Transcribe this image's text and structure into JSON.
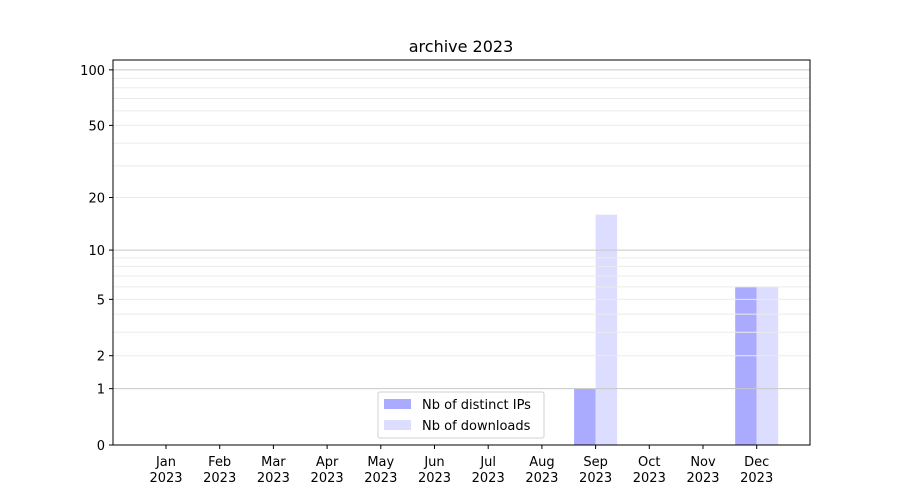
{
  "chart_data": {
    "type": "bar",
    "title": "archive 2023",
    "xlabel": "",
    "ylabel": "",
    "yscale": "symlog (log10(1+y))",
    "ylim": [
      0,
      113
    ],
    "yticks": [
      0,
      1,
      2,
      5,
      10,
      20,
      50,
      100
    ],
    "grid": true,
    "legend_placement": "bottom-center",
    "categories": [
      "Jan\n2023",
      "Feb\n2023",
      "Mar\n2023",
      "Apr\n2023",
      "May\n2023",
      "Jun\n2023",
      "Jul\n2023",
      "Aug\n2023",
      "Sep\n2023",
      "Oct\n2023",
      "Nov\n2023",
      "Dec\n2023"
    ],
    "series": [
      {
        "name": "Nb of distinct IPs",
        "color": "#aaaaff",
        "values": [
          0,
          0,
          0,
          0,
          0,
          0,
          0,
          0,
          1,
          0,
          0,
          6
        ]
      },
      {
        "name": "Nb of downloads",
        "color": "#ddddff",
        "values": [
          0,
          0,
          0,
          0,
          0,
          0,
          0,
          0,
          16,
          0,
          0,
          6
        ]
      }
    ]
  }
}
